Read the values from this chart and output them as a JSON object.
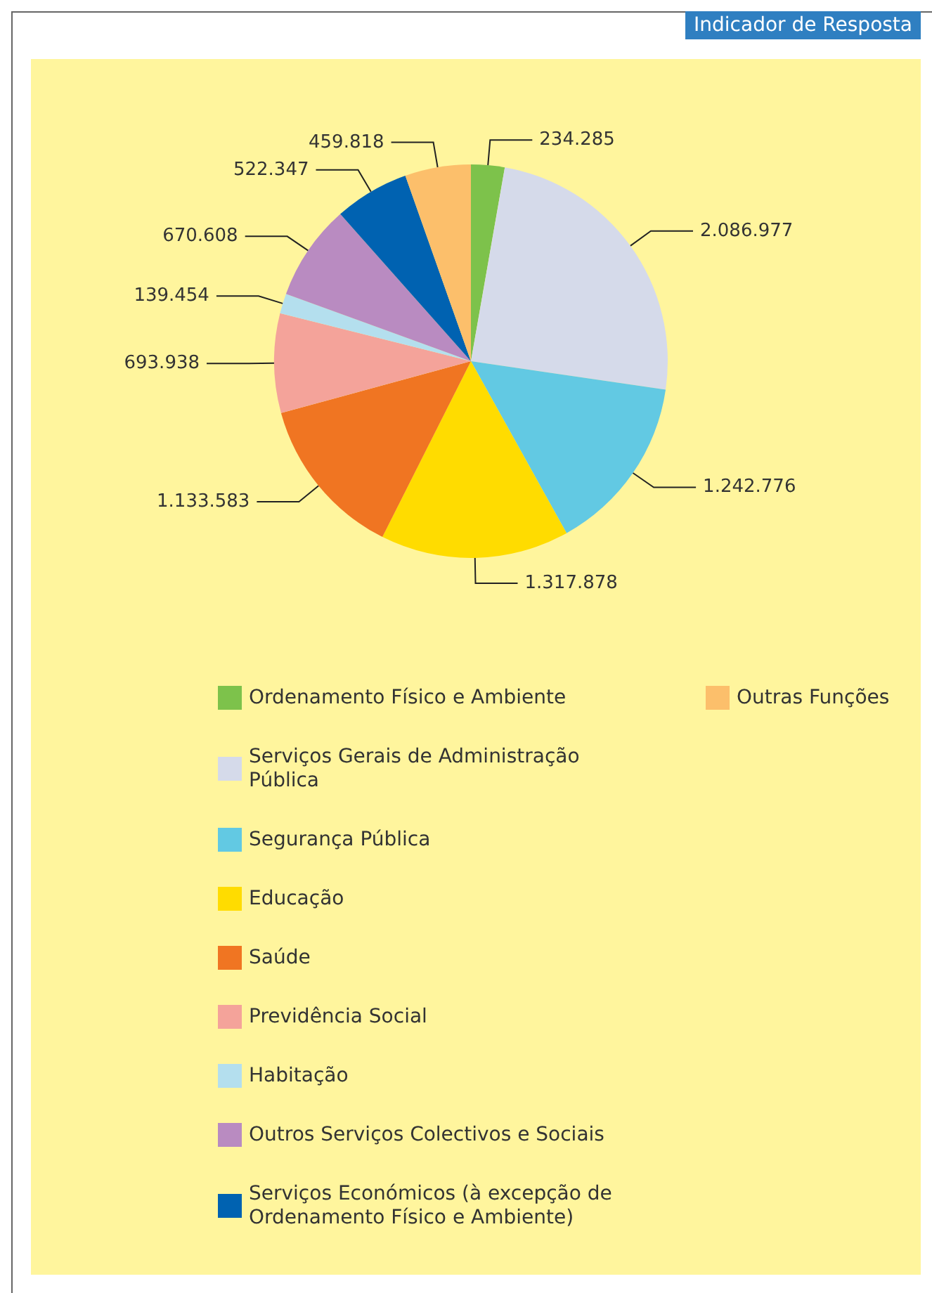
{
  "chart_data": {
    "type": "pie",
    "title": "Indicador de Resposta",
    "categories": [
      "Ordenamento Físico e Ambiente",
      "Serviços Gerais de Administração Pública",
      "Segurança Pública",
      "Educação",
      "Saúde",
      "Previdência Social",
      "Habitação",
      "Outros Serviços Colectivos e Sociais",
      "Serviços Económicos (à excepção de Ordenamento Físico e Ambiente)",
      "Outras Funções"
    ],
    "values": [
      234285,
      2086977,
      1242776,
      1317878,
      1133583,
      693938,
      139454,
      670608,
      522347,
      459818
    ],
    "value_labels": [
      "234.285",
      "2.086.977",
      "1.242.776",
      "1.317.878",
      "1.133.583",
      "693.938",
      "139.454",
      "670.608",
      "522.347",
      "459.818"
    ],
    "colors": [
      "#7dc24b",
      "#d5daea",
      "#62c9e3",
      "#ffdc00",
      "#f07522",
      "#f4a39a",
      "#b4dfee",
      "#b98bc1",
      "#0062b1",
      "#fcbf6b"
    ],
    "legend": "bottom"
  }
}
